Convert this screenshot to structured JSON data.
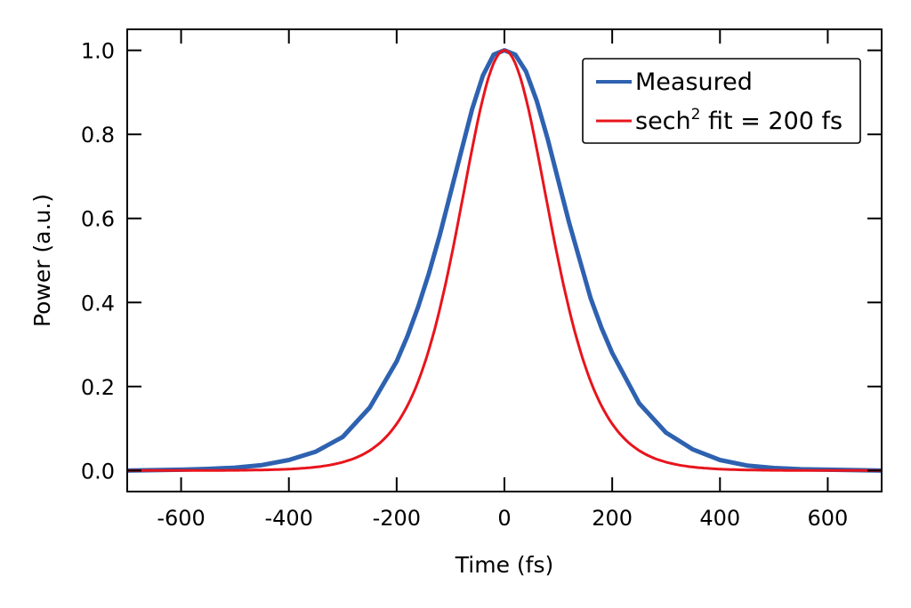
{
  "chart_data": {
    "type": "line",
    "title": "",
    "xlabel": "Time (fs)",
    "ylabel": "Power (a.u.)",
    "xlim": [
      -700,
      700
    ],
    "ylim": [
      -0.05,
      1.05
    ],
    "grid": false,
    "legend_position": "top-right",
    "xticks": [
      -600,
      -400,
      -200,
      0,
      200,
      400,
      600
    ],
    "xtick_labels": [
      "-600",
      "-400",
      "-200",
      "0",
      "200",
      "400",
      "600"
    ],
    "yticks": [
      0.0,
      0.2,
      0.4,
      0.6,
      0.8,
      1.0
    ],
    "ytick_labels": [
      "0.0",
      "0.2",
      "0.4",
      "0.6",
      "0.8",
      "1.0"
    ],
    "series": [
      {
        "name": "Measured",
        "color": "#2e62b0",
        "x": [
          -700,
          -600,
          -550,
          -500,
          -450,
          -400,
          -350,
          -300,
          -250,
          -200,
          -180,
          -160,
          -140,
          -120,
          -100,
          -80,
          -60,
          -40,
          -20,
          0,
          20,
          40,
          60,
          80,
          100,
          120,
          140,
          160,
          180,
          200,
          250,
          300,
          350,
          400,
          450,
          500,
          550,
          600,
          700
        ],
        "y": [
          0.0,
          0.002,
          0.004,
          0.007,
          0.013,
          0.025,
          0.045,
          0.08,
          0.15,
          0.26,
          0.32,
          0.39,
          0.47,
          0.56,
          0.66,
          0.76,
          0.86,
          0.94,
          0.99,
          1.0,
          0.99,
          0.95,
          0.88,
          0.79,
          0.69,
          0.59,
          0.5,
          0.41,
          0.34,
          0.28,
          0.16,
          0.09,
          0.05,
          0.025,
          0.012,
          0.006,
          0.003,
          0.002,
          0.0
        ]
      },
      {
        "name": "sech² fit = 200 fs",
        "color": "#e8141c",
        "fwhm_fs": 200,
        "function": "sech^2",
        "x_range": [
          -700,
          700
        ]
      }
    ]
  },
  "legend": {
    "items": [
      {
        "label": "Measured",
        "color": "#2e62b0"
      },
      {
        "label_main": "sech",
        "label_sup": "2",
        "label_rest": " fit = 200 fs",
        "color": "#e8141c"
      }
    ]
  }
}
